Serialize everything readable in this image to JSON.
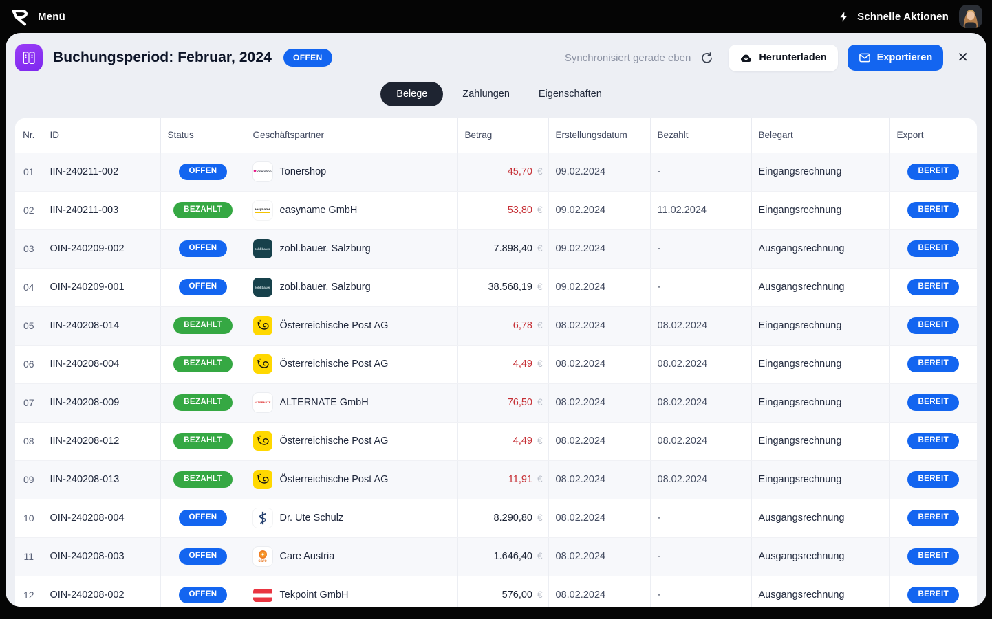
{
  "topbar": {
    "menu_label": "Menü",
    "quick_actions_label": "Schnelle Aktionen"
  },
  "header": {
    "title": "Buchungsperiod: Februar, 2024",
    "status_badge": "OFFEN",
    "sync_status": "Synchronisiert gerade eben",
    "download_label": "Herunterladen",
    "export_label": "Exportieren",
    "close_glyph": "✕"
  },
  "tabs": [
    {
      "label": "Belege",
      "active": true
    },
    {
      "label": "Zahlungen",
      "active": false
    },
    {
      "label": "Eigenschaften",
      "active": false
    }
  ],
  "table": {
    "columns": [
      "Nr.",
      "ID",
      "Status",
      "Geschäftspartner",
      "Betrag",
      "Erstellungsdatum",
      "Bezahlt",
      "Belegart",
      "Export"
    ],
    "rows": [
      {
        "nr": "01",
        "id": "IIN-240211-002",
        "status": "OFFEN",
        "status_color": "blue",
        "partner": "Tonershop",
        "logo": "tonershop-logo",
        "amount": "45,70",
        "currency": "€",
        "amount_color": "red",
        "created": "09.02.2024",
        "paid": "-",
        "type": "Eingangsrechnung",
        "export_status": "BEREIT",
        "export_color": "blue"
      },
      {
        "nr": "02",
        "id": "IIN-240211-003",
        "status": "BEZAHLT",
        "status_color": "green",
        "partner": "easyname GmbH",
        "logo": "easyname-logo",
        "amount": "53,80",
        "currency": "€",
        "amount_color": "red",
        "created": "09.02.2024",
        "paid": "11.02.2024",
        "type": "Eingangsrechnung",
        "export_status": "BEREIT",
        "export_color": "blue"
      },
      {
        "nr": "03",
        "id": "OIN-240209-002",
        "status": "OFFEN",
        "status_color": "blue",
        "partner": "zobl.bauer. Salzburg",
        "logo": "zoblbauer-logo",
        "amount": "7.898,40",
        "currency": "€",
        "amount_color": "dark",
        "created": "09.02.2024",
        "paid": "-",
        "type": "Ausgangsrechnung",
        "export_status": "BEREIT",
        "export_color": "blue"
      },
      {
        "nr": "04",
        "id": "OIN-240209-001",
        "status": "OFFEN",
        "status_color": "blue",
        "partner": "zobl.bauer. Salzburg",
        "logo": "zoblbauer-logo",
        "amount": "38.568,19",
        "currency": "€",
        "amount_color": "dark",
        "created": "09.02.2024",
        "paid": "-",
        "type": "Ausgangsrechnung",
        "export_status": "BEREIT",
        "export_color": "blue"
      },
      {
        "nr": "05",
        "id": "IIN-240208-014",
        "status": "BEZAHLT",
        "status_color": "green",
        "partner": "Österreichische Post AG",
        "logo": "post-logo",
        "amount": "6,78",
        "currency": "€",
        "amount_color": "red",
        "created": "08.02.2024",
        "paid": "08.02.2024",
        "type": "Eingangsrechnung",
        "export_status": "BEREIT",
        "export_color": "blue"
      },
      {
        "nr": "06",
        "id": "IIN-240208-004",
        "status": "BEZAHLT",
        "status_color": "green",
        "partner": "Österreichische Post AG",
        "logo": "post-logo",
        "amount": "4,49",
        "currency": "€",
        "amount_color": "red",
        "created": "08.02.2024",
        "paid": "08.02.2024",
        "type": "Eingangsrechnung",
        "export_status": "BEREIT",
        "export_color": "blue"
      },
      {
        "nr": "07",
        "id": "IIN-240208-009",
        "status": "BEZAHLT",
        "status_color": "green",
        "partner": "ALTERNATE GmbH",
        "logo": "alternate-logo",
        "amount": "76,50",
        "currency": "€",
        "amount_color": "red",
        "created": "08.02.2024",
        "paid": "08.02.2024",
        "type": "Eingangsrechnung",
        "export_status": "BEREIT",
        "export_color": "blue"
      },
      {
        "nr": "08",
        "id": "IIN-240208-012",
        "status": "BEZAHLT",
        "status_color": "green",
        "partner": "Österreichische Post AG",
        "logo": "post-logo",
        "amount": "4,49",
        "currency": "€",
        "amount_color": "red",
        "created": "08.02.2024",
        "paid": "08.02.2024",
        "type": "Eingangsrechnung",
        "export_status": "BEREIT",
        "export_color": "blue"
      },
      {
        "nr": "09",
        "id": "IIN-240208-013",
        "status": "BEZAHLT",
        "status_color": "green",
        "partner": "Österreichische Post AG",
        "logo": "post-logo",
        "amount": "11,91",
        "currency": "€",
        "amount_color": "red",
        "created": "08.02.2024",
        "paid": "08.02.2024",
        "type": "Eingangsrechnung",
        "export_status": "BEREIT",
        "export_color": "blue"
      },
      {
        "nr": "10",
        "id": "OIN-240208-004",
        "status": "OFFEN",
        "status_color": "blue",
        "partner": "Dr. Ute Schulz",
        "logo": "asclepius-logo",
        "amount": "8.290,80",
        "currency": "€",
        "amount_color": "dark",
        "created": "08.02.2024",
        "paid": "-",
        "type": "Ausgangsrechnung",
        "export_status": "BEREIT",
        "export_color": "blue"
      },
      {
        "nr": "11",
        "id": "OIN-240208-003",
        "status": "OFFEN",
        "status_color": "blue",
        "partner": "Care Austria",
        "logo": "care-logo",
        "amount": "1.646,40",
        "currency": "€",
        "amount_color": "dark",
        "created": "08.02.2024",
        "paid": "-",
        "type": "Ausgangsrechnung",
        "export_status": "BEREIT",
        "export_color": "blue"
      },
      {
        "nr": "12",
        "id": "OIN-240208-002",
        "status": "OFFEN",
        "status_color": "blue",
        "partner": "Tekpoint GmbH",
        "logo": "austria-flag-logo",
        "amount": "576,00",
        "currency": "€",
        "amount_color": "dark",
        "created": "08.02.2024",
        "paid": "-",
        "type": "Ausgangsrechnung",
        "export_status": "BEREIT",
        "export_color": "blue"
      }
    ]
  },
  "colors": {
    "accent_blue": "#1365f0",
    "paid_green": "#35a843",
    "amount_red": "#c62f35",
    "period_icon_purple": "#8a2ff2",
    "topbar_black": "#050505",
    "card_background": "#edeff4"
  }
}
